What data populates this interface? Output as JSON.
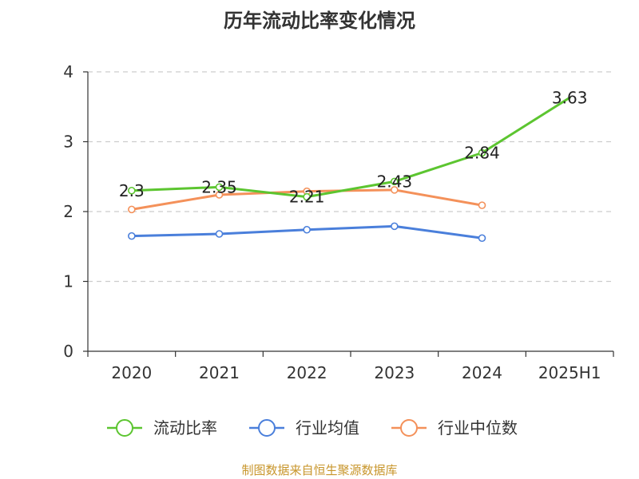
{
  "chart_data": {
    "type": "line",
    "title": "历年流动比率变化情况",
    "categories": [
      "2020",
      "2021",
      "2022",
      "2023",
      "2024",
      "2025H1"
    ],
    "ylim": [
      0,
      4
    ],
    "yticks": [
      "0",
      "1",
      "2",
      "3",
      "4"
    ],
    "grid": true,
    "legend_placement": "bottom",
    "series": [
      {
        "name": "流动比率",
        "color": "#5cc530",
        "values": [
          2.3,
          2.35,
          2.21,
          2.43,
          2.84,
          3.63
        ],
        "labels": [
          "2.3",
          "2.35",
          "2.21",
          "2.43",
          "2.84",
          "3.63"
        ]
      },
      {
        "name": "行业均值",
        "color": "#4a7fdb",
        "values": [
          1.65,
          1.68,
          1.74,
          1.79,
          1.62,
          null
        ]
      },
      {
        "name": "行业中位数",
        "color": "#f4915a",
        "values": [
          2.03,
          2.24,
          2.29,
          2.31,
          2.09,
          null
        ]
      }
    ],
    "source": "制图数据来自恒生聚源数据库"
  }
}
